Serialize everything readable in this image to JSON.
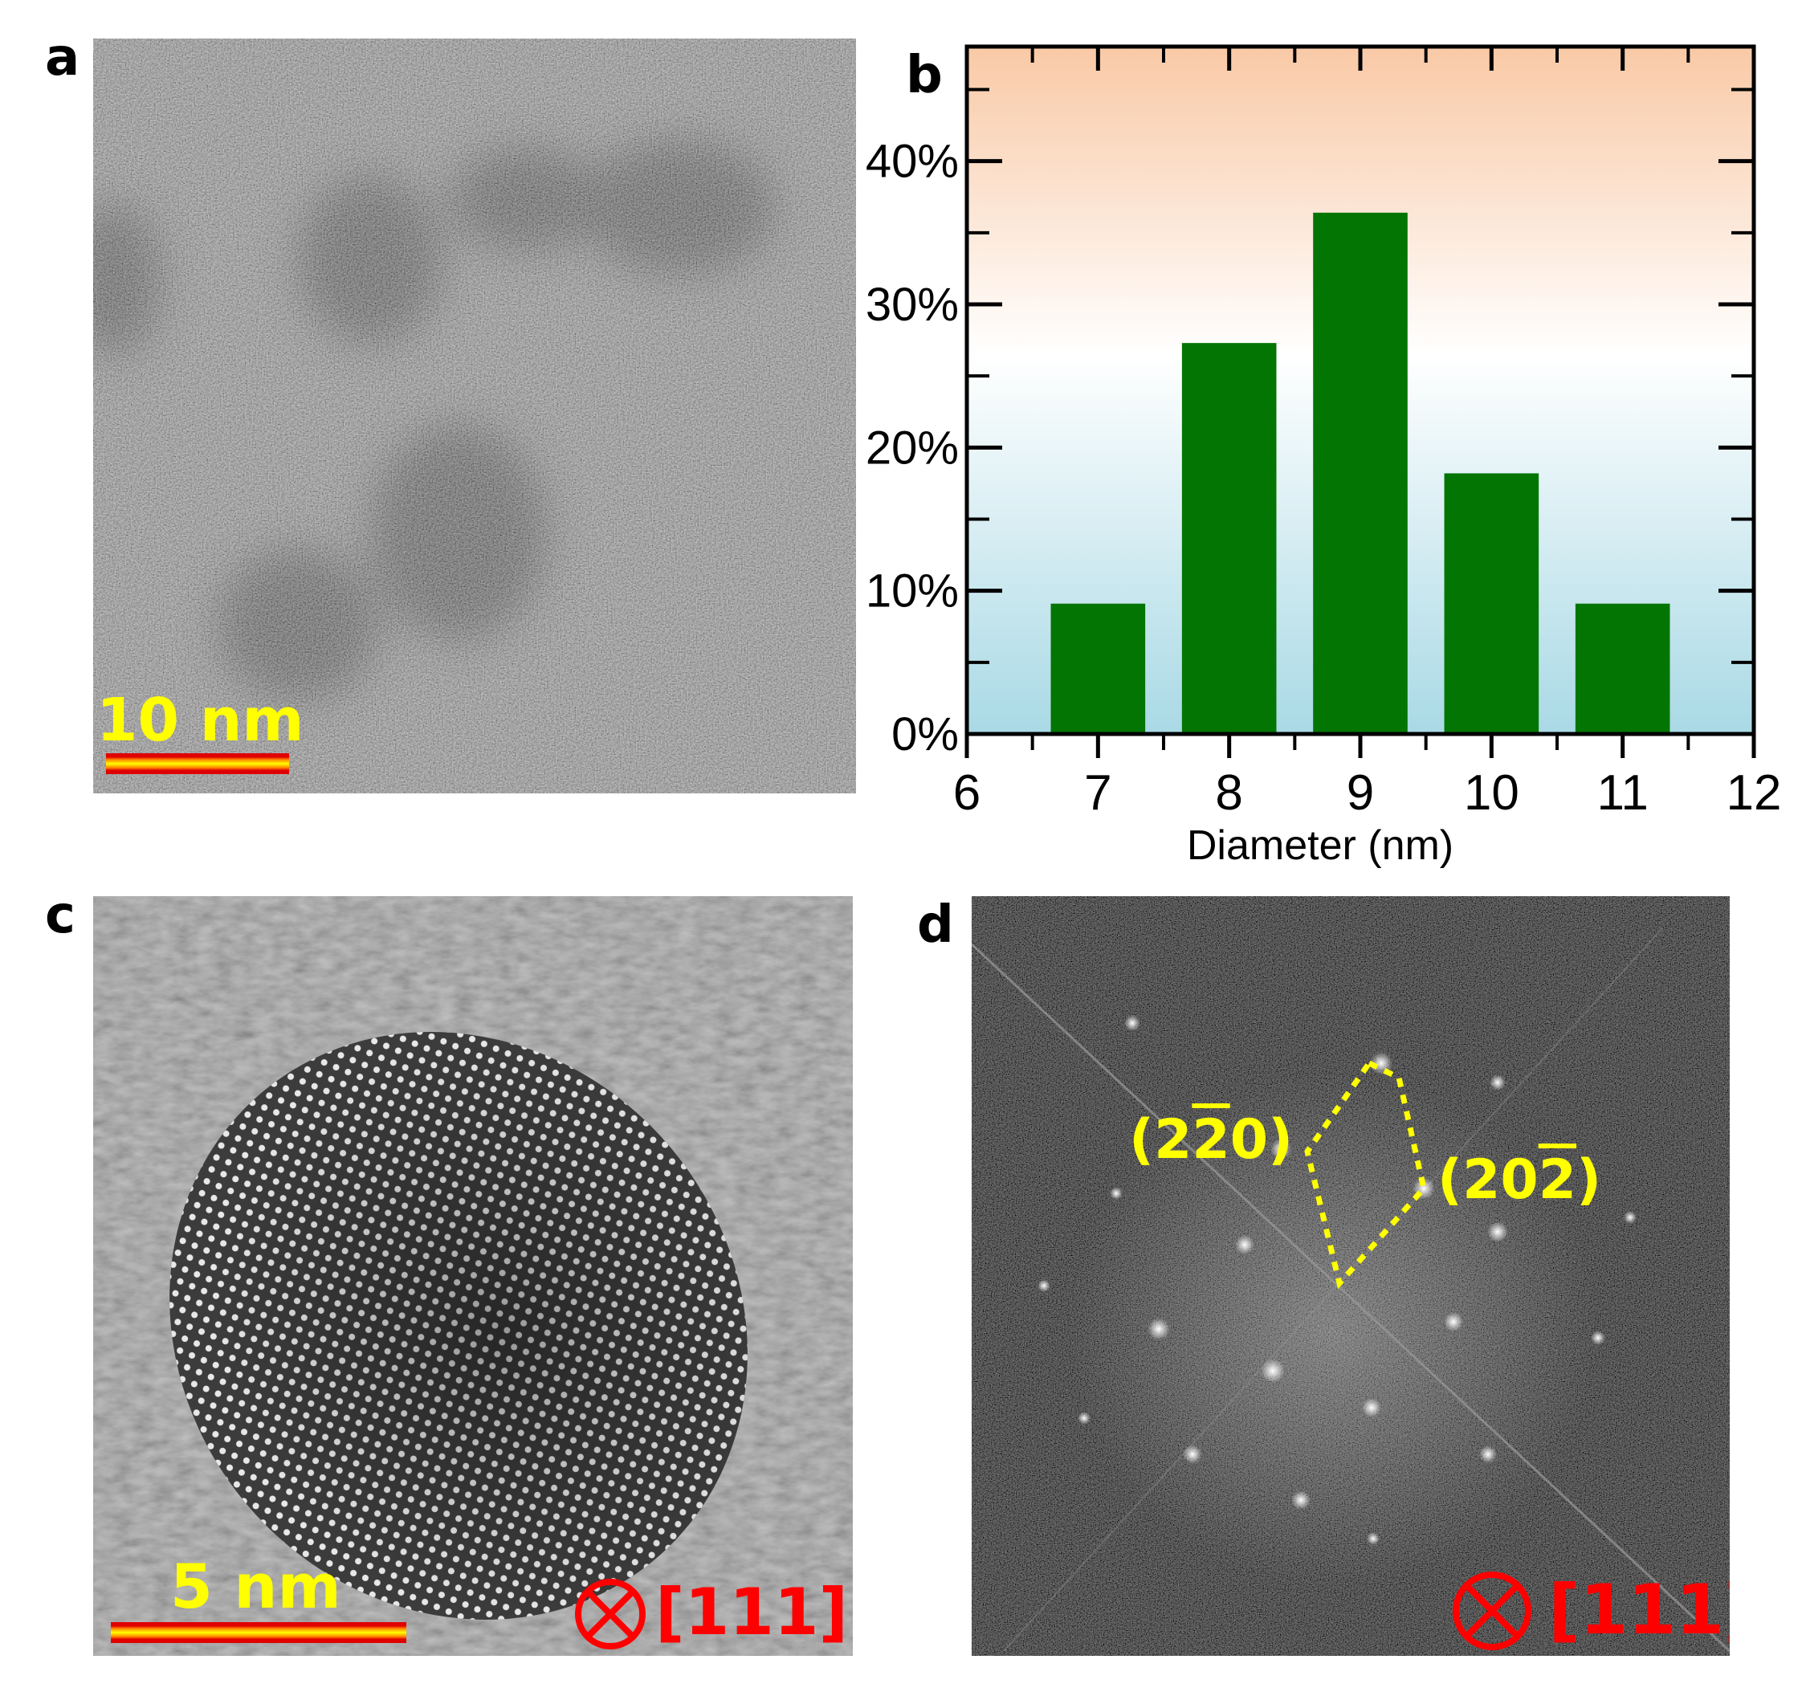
{
  "figure": {
    "panels": {
      "a": {
        "letter": "a",
        "scale_label": "10 nm",
        "description_icon": "tem-micrograph"
      },
      "b": {
        "letter": "b"
      },
      "c": {
        "letter": "c",
        "scale_label": "5 nm",
        "zone_axis": "[111]"
      },
      "d": {
        "letter": "d",
        "zone_axis": "[111]"
      }
    },
    "colors": {
      "bar": "#037503",
      "bg_top": "#f9c9a6",
      "bg_mid": "#ffffff",
      "bg_bottom": "#a9d9e5",
      "label_yellow": "#ffff00",
      "label_red": "#ff0000"
    }
  },
  "chart_data": {
    "type": "bar",
    "categories": [
      "7",
      "8",
      "9",
      "10",
      "11"
    ],
    "values": [
      9.1,
      27.3,
      36.4,
      18.2,
      9.1
    ],
    "bar_x": [
      7,
      8,
      9,
      10,
      11
    ],
    "bar_width": 0.72,
    "xlabel": "Diameter (nm)",
    "ylabel": "",
    "xlim": [
      6,
      12
    ],
    "ylim": [
      0,
      48
    ],
    "xticks": [
      "6",
      "7",
      "8",
      "9",
      "10",
      "11",
      "12"
    ],
    "yticks": [
      "0%",
      "10%",
      "20%",
      "30%",
      "40%"
    ],
    "grid": false
  }
}
